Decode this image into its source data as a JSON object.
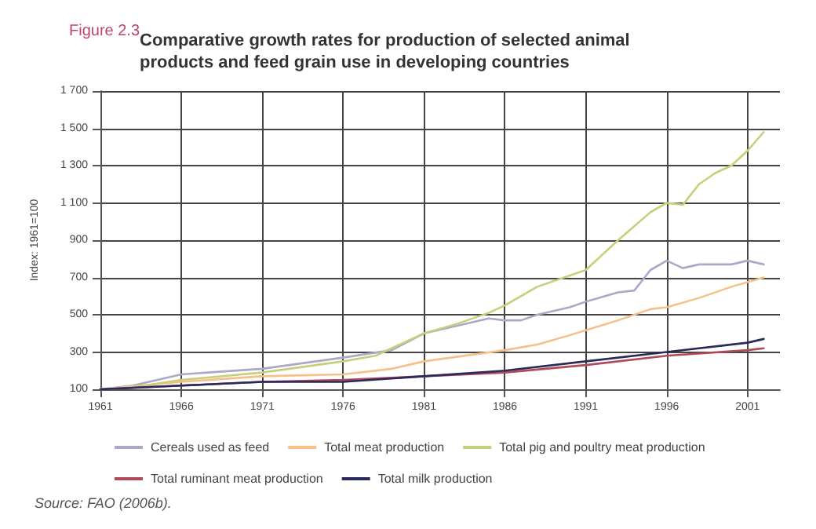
{
  "chart_data": {
    "type": "line",
    "title": "Comparative growth rates for production of selected animal products and feed grain use in developing countries",
    "ylabel": "Index: 1961=100",
    "annotations": [
      "Figure 2.3",
      "Source: FAO (2006b)."
    ],
    "xlim": [
      1961,
      2003
    ],
    "xticks": [
      1961,
      1966,
      1971,
      1976,
      1981,
      1986,
      1991,
      1996,
      2001
    ],
    "ylim": [
      100,
      1700
    ],
    "yticks": [
      100,
      300,
      500,
      700,
      900,
      {
        "value": 1100,
        "label": "1 100"
      },
      {
        "value": 1300,
        "label": "1 300"
      },
      {
        "value": 1500,
        "label": "1 500"
      },
      {
        "value": 1700,
        "label": "1 700"
      }
    ],
    "grid": true,
    "legend": "bottom",
    "marker": "none",
    "line_style": "solid",
    "series": [
      {
        "name": "Cereals used as feed",
        "color": "#a9a9c8",
        "x": [
          1961,
          1963,
          1966,
          1971,
          1976,
          1979,
          1981,
          1983,
          1985,
          1986,
          1987,
          1988,
          1990,
          1991,
          1993,
          1994,
          1995,
          1996,
          1997,
          1998,
          2000,
          2001,
          2002
        ],
        "values": [
          100,
          120,
          180,
          210,
          270,
          310,
          400,
          440,
          480,
          470,
          470,
          500,
          540,
          570,
          620,
          630,
          740,
          790,
          750,
          770,
          770,
          790,
          770
        ]
      },
      {
        "name": "Total meat production",
        "color": "#f5c08a",
        "x": [
          1961,
          1966,
          1971,
          1976,
          1979,
          1981,
          1986,
          1988,
          1990,
          1993,
          1995,
          1996,
          1998,
          2000,
          2002
        ],
        "values": [
          100,
          140,
          170,
          180,
          210,
          250,
          310,
          340,
          390,
          470,
          530,
          540,
          590,
          650,
          700
        ]
      },
      {
        "name": "Total pig and poultry meat production",
        "color": "#c8cf7a",
        "x": [
          1961,
          1963,
          1966,
          1971,
          1976,
          1978,
          1981,
          1983,
          1985,
          1986,
          1988,
          1991,
          1993,
          1995,
          1996,
          1997,
          1998,
          1999,
          2000,
          2001,
          2002
        ],
        "values": [
          100,
          110,
          150,
          190,
          250,
          280,
          400,
          450,
          510,
          550,
          650,
          740,
          900,
          1050,
          1100,
          1090,
          1200,
          1260,
          1300,
          1380,
          1480
        ]
      },
      {
        "name": "Total ruminant meat production",
        "color": "#b04a5a",
        "x": [
          1961,
          1966,
          1971,
          1976,
          1981,
          1986,
          1991,
          1996,
          2001,
          2002
        ],
        "values": [
          100,
          120,
          140,
          150,
          170,
          190,
          230,
          280,
          310,
          320
        ]
      },
      {
        "name": "Total milk production",
        "color": "#2a2a5a",
        "x": [
          1961,
          1966,
          1971,
          1976,
          1981,
          1986,
          1991,
          1996,
          2001,
          2002
        ],
        "values": [
          100,
          120,
          140,
          140,
          170,
          200,
          250,
          300,
          350,
          370
        ]
      }
    ]
  }
}
